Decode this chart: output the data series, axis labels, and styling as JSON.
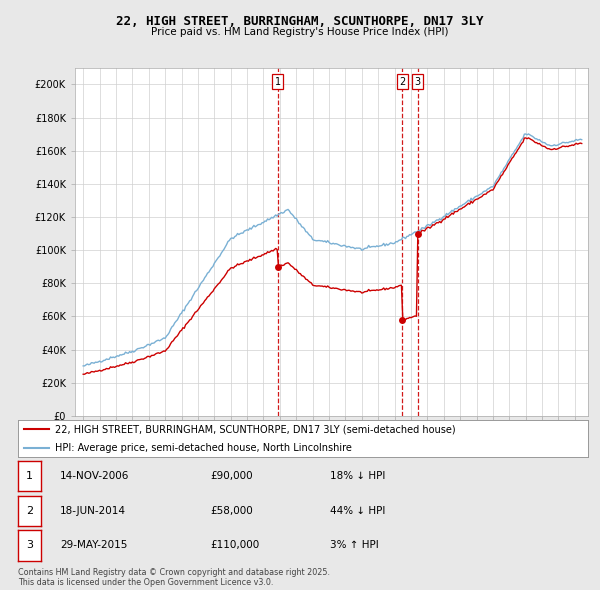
{
  "title": "22, HIGH STREET, BURRINGHAM, SCUNTHORPE, DN17 3LY",
  "subtitle": "Price paid vs. HM Land Registry's House Price Index (HPI)",
  "legend_line1": "22, HIGH STREET, BURRINGHAM, SCUNTHORPE, DN17 3LY (semi-detached house)",
  "legend_line2": "HPI: Average price, semi-detached house, North Lincolnshire",
  "footer": "Contains HM Land Registry data © Crown copyright and database right 2025.\nThis data is licensed under the Open Government Licence v3.0.",
  "transactions": [
    {
      "label": "1",
      "date": "14-NOV-2006",
      "price": 90000,
      "hpi_diff": "18% ↓ HPI",
      "x_year": 2006.87
    },
    {
      "label": "2",
      "date": "18-JUN-2014",
      "price": 58000,
      "hpi_diff": "44% ↓ HPI",
      "x_year": 2014.46
    },
    {
      "label": "3",
      "date": "29-MAY-2015",
      "price": 110000,
      "hpi_diff": "3% ↑ HPI",
      "x_year": 2015.41
    }
  ],
  "price_color": "#cc0000",
  "hpi_color": "#7ab0d4",
  "vline_color": "#cc0000",
  "background_color": "#e8e8e8",
  "plot_bg": "#ffffff",
  "ylim": [
    0,
    210000
  ],
  "xlim_start": 1994.5,
  "xlim_end": 2025.8,
  "yticks": [
    0,
    20000,
    40000,
    60000,
    80000,
    100000,
    120000,
    140000,
    160000,
    180000,
    200000
  ],
  "ytick_labels": [
    "£0",
    "£20K",
    "£40K",
    "£60K",
    "£80K",
    "£100K",
    "£120K",
    "£140K",
    "£160K",
    "£180K",
    "£200K"
  ]
}
